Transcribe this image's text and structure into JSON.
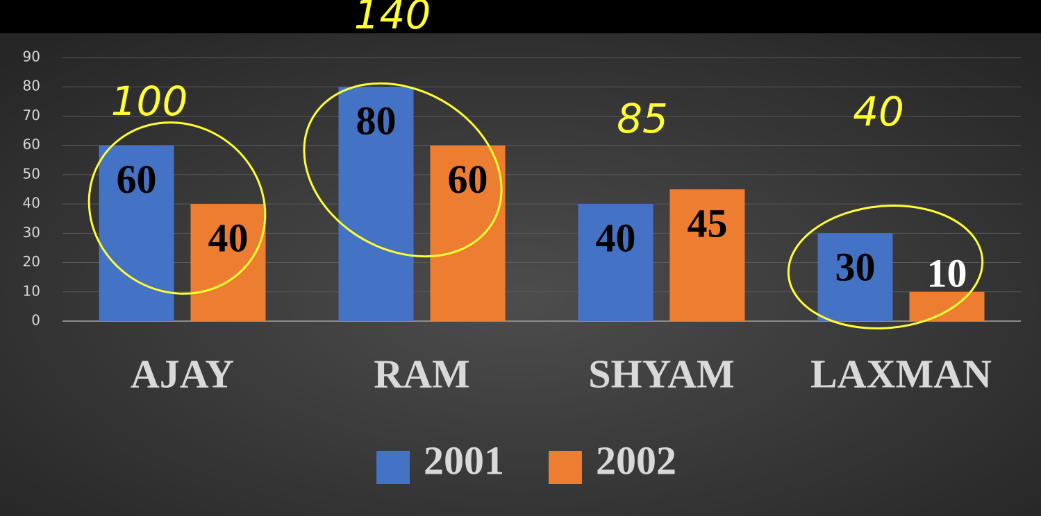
{
  "chart_data": {
    "type": "bar",
    "categories": [
      "AJAY",
      "RAM",
      "SHYAM",
      "LAXMAN"
    ],
    "series": [
      {
        "name": "2001",
        "color": "#4472c4",
        "values": [
          60,
          80,
          40,
          30
        ]
      },
      {
        "name": "2002",
        "color": "#ed7d31",
        "values": [
          40,
          60,
          45,
          10
        ]
      }
    ],
    "ylim": [
      0,
      90
    ],
    "yticks": [
      0,
      10,
      20,
      30,
      40,
      50,
      60,
      70,
      80,
      90
    ],
    "grid": true,
    "legend": "bottom",
    "annotations": [
      "100",
      "140",
      "85",
      "40"
    ]
  }
}
